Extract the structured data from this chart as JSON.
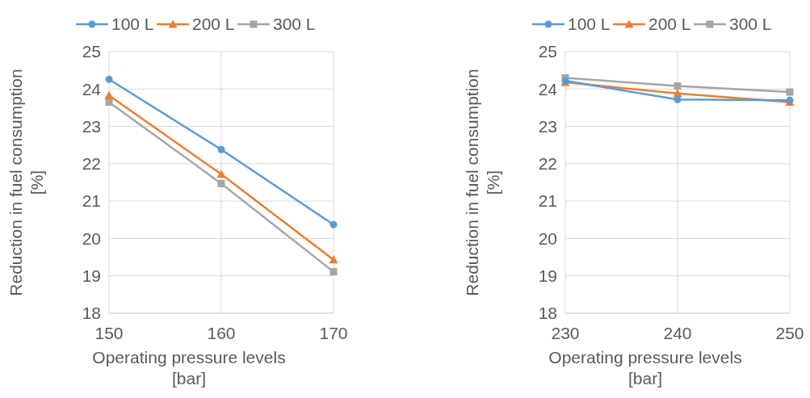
{
  "chart_data": [
    {
      "type": "line",
      "xlabel": "Operating pressure levels\n[bar]",
      "ylabel": "Reduction in fuel consumption\n[%]",
      "x": [
        150,
        160,
        170
      ],
      "xlim": [
        150,
        170
      ],
      "xticks": [
        150,
        160,
        170
      ],
      "ylim": [
        18,
        25
      ],
      "yticks": [
        18,
        19,
        20,
        21,
        22,
        23,
        24,
        25
      ],
      "grid": true,
      "legend": "top",
      "series": [
        {
          "name": "100 L",
          "color": "#5b9bd5",
          "marker": "circle",
          "values": [
            24.26,
            22.38,
            20.37
          ]
        },
        {
          "name": "200 L",
          "color": "#ed7d31",
          "marker": "triangle",
          "values": [
            23.83,
            21.72,
            19.43
          ]
        },
        {
          "name": "300 L",
          "color": "#a5a5a5",
          "marker": "square",
          "values": [
            23.65,
            21.47,
            19.11
          ]
        }
      ]
    },
    {
      "type": "line",
      "xlabel": "Operating pressure levels\n[bar]",
      "ylabel": "Reduction in fuel consumption\n[%]",
      "x": [
        230,
        240,
        250
      ],
      "xlim": [
        230,
        250
      ],
      "xticks": [
        230,
        240,
        250
      ],
      "ylim": [
        18,
        25
      ],
      "yticks": [
        18,
        19,
        20,
        21,
        22,
        23,
        24,
        25
      ],
      "grid": true,
      "legend": "top",
      "series": [
        {
          "name": "100 L",
          "color": "#5b9bd5",
          "marker": "circle",
          "values": [
            24.22,
            23.72,
            23.7
          ]
        },
        {
          "name": "200 L",
          "color": "#ed7d31",
          "marker": "triangle",
          "values": [
            24.18,
            23.88,
            23.65
          ]
        },
        {
          "name": "300 L",
          "color": "#a5a5a5",
          "marker": "square",
          "values": [
            24.3,
            24.08,
            23.92
          ]
        }
      ]
    }
  ]
}
